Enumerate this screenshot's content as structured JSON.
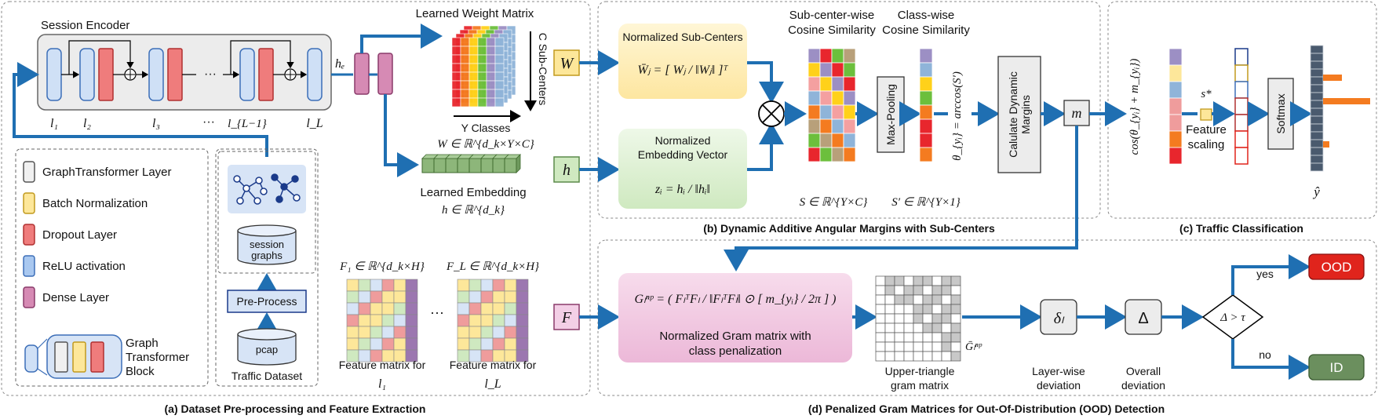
{
  "panels": {
    "a": "(a) Dataset Pre-processing and Feature Extraction",
    "b": "(b) Dynamic Additive Angular Margins with Sub-Centers",
    "c": "(c) Traffic Classification",
    "d": "(d) Penalized Gram Matrices for Out-Of-Distribution (OOD) Detection"
  },
  "encoder": {
    "title": "Session Encoder",
    "labels": [
      "l₁",
      "l₂",
      "l₃",
      "···",
      "l_{L−1}",
      "l_L"
    ],
    "dots": "···",
    "he": "hₑ"
  },
  "weight_matrix": {
    "title": "Learned Weight Matrix",
    "subcenters": "C Sub-Centers",
    "classes": "Y Classes",
    "formula": "W ∈ ℝ^{d_k×Y×C}",
    "colors": [
      "#e8262d",
      "#f47b20",
      "#ffd11a",
      "#6cbf3c",
      "#9c8fc4",
      "#8fb4d9"
    ]
  },
  "embedding": {
    "title": "Learned Embedding",
    "formula": "h ∈ ℝ^{d_k}",
    "color": "#8db67a"
  },
  "legend": {
    "items": [
      {
        "label": "GraphTransformer Layer",
        "color": "#f0f0f0"
      },
      {
        "label": "Batch Normalization",
        "color": "#fde79a"
      },
      {
        "label": "Dropout Layer",
        "color": "#ef7c7c"
      },
      {
        "label": "ReLU activation",
        "color": "#a9c8f0"
      },
      {
        "label": "Dense Layer",
        "color": "#d68ab4"
      }
    ],
    "block_label": [
      "Graph",
      "Transformer",
      "Block"
    ]
  },
  "dataset": {
    "session_graphs": [
      "session",
      "graphs"
    ],
    "preprocess": "Pre-Process",
    "pcap": "pcap",
    "caption": "Traffic Dataset"
  },
  "features": {
    "f1": "F₁ ∈ ℝ^{d_k×H}",
    "fL": "F_L ∈ ℝ^{d_k×H}",
    "cap1": "Feature matrix for",
    "l1": "l₁",
    "capL": "Feature matrix for",
    "lL": "l_L",
    "dots": "···"
  },
  "inputs": {
    "W": "W",
    "h": "h",
    "F": "F"
  },
  "panel_b": {
    "subcenters_title": "Normalized Sub-Centers",
    "subcenters_formula": "W̄ⱼ = [ Wⱼ / ‖Wⱼ‖ ]ᵀ",
    "embed_title": [
      "Normalized",
      "Embedding Vector"
    ],
    "embed_formula": "zᵢ = hᵢ / ‖hᵢ‖",
    "sub_sim": [
      "Sub-center-wise",
      "Cosine Similarity"
    ],
    "class_sim": [
      "Class-wise",
      "Cosine Similarity"
    ],
    "maxpool": "Max-Pooling",
    "theta": "θ_{yᵢ} = arccos(S′)",
    "dyn": [
      "Calulate Dynamic",
      "Margins"
    ],
    "S": "S ∈ ℝ^{Y×C}",
    "Sp": "S′ ∈ ℝ^{Y×1}",
    "m": "m"
  },
  "panel_c": {
    "cos": "cos(θ_{yᵢ} + m_{yᵢ})",
    "s": "s*",
    "feature_scaling": [
      "Feature",
      "scaling"
    ],
    "softmax": "Softmax",
    "yhat": "ŷ"
  },
  "panel_d": {
    "gram_formula": "Gₗⁿᵖ = ( FₗᵀFₗ / ‖FₗᵀFₗ‖ ⊙ [ m_{yᵢ} / 2π ] )",
    "gram_caption": [
      "Normalized Gram matrix with",
      "class penalization"
    ],
    "upper": [
      "Upper-triangle",
      "gram matrix"
    ],
    "gbar": "Ḡₗⁿᵖ",
    "delta_l": "δₗ",
    "layer_dev": [
      "Layer-wise",
      "deviation"
    ],
    "delta": "Δ",
    "overall": [
      "Overall",
      "deviation"
    ],
    "decision": "Δ > τ",
    "yes": "yes",
    "no": "no",
    "ood": "OOD",
    "id": "ID"
  },
  "colors": {
    "arrow": "#1f6fb2",
    "ood": "#e0241c",
    "id": "#6b8f5e",
    "gram_box": "#f3cfe6",
    "subcenter_box": "#fdf0c4",
    "embed_box": "#d9efcf"
  }
}
